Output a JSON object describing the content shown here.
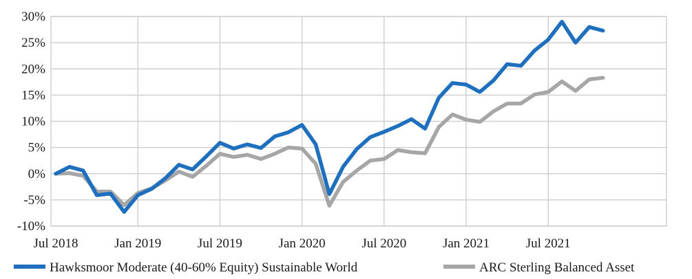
{
  "chart_data": {
    "type": "line",
    "title": "",
    "xlabel": "",
    "ylabel": "",
    "x_tick_labels": [
      "Jul 2018",
      "Jan 2019",
      "Jul 2019",
      "Jan 2020",
      "Jul 2020",
      "Jan 2021",
      "Jul 2021"
    ],
    "y_tick_labels": [
      "-10%",
      "-5%",
      "0%",
      "5%",
      "10%",
      "15%",
      "20%",
      "25%",
      "30%"
    ],
    "ylim": [
      -10,
      30
    ],
    "y_unit": "%",
    "grid": true,
    "legend_position": "bottom",
    "x": [
      "Jul 2018",
      "Aug 2018",
      "Sep 2018",
      "Oct 2018",
      "Nov 2018",
      "Dec 2018",
      "Jan 2019",
      "Feb 2019",
      "Mar 2019",
      "Apr 2019",
      "May 2019",
      "Jun 2019",
      "Jul 2019",
      "Aug 2019",
      "Sep 2019",
      "Oct 2019",
      "Nov 2019",
      "Dec 2019",
      "Jan 2020",
      "Feb 2020",
      "Mar 2020",
      "Apr 2020",
      "May 2020",
      "Jun 2020",
      "Jul 2020",
      "Aug 2020",
      "Sep 2020",
      "Oct 2020",
      "Nov 2020",
      "Dec 2020",
      "Jan 2021",
      "Feb 2021",
      "Mar 2021",
      "Apr 2021",
      "May 2021",
      "Jun 2021",
      "Jul 2021",
      "Aug 2021",
      "Sep 2021",
      "Oct 2021",
      "Nov 2021"
    ],
    "series": [
      {
        "name": "Hawksmoor Moderate (40-60% Equity) Sustainable World",
        "color": "#1f6fbf",
        "values": [
          0,
          1.3,
          0.6,
          -4.1,
          -3.8,
          -7.3,
          -4.1,
          -2.9,
          -0.9,
          1.7,
          0.8,
          3.3,
          5.9,
          4.8,
          5.6,
          4.9,
          7.1,
          7.9,
          9.3,
          5.6,
          -3.9,
          1.3,
          4.7,
          7.0,
          8.0,
          9.1,
          10.4,
          8.6,
          14.5,
          17.3,
          17.0,
          15.6,
          17.8,
          20.9,
          20.6,
          23.5,
          25.6,
          29.0,
          25.0,
          28.0,
          27.3
        ]
      },
      {
        "name": "ARC Sterling Balanced Asset",
        "color": "#a6a6a6",
        "values": [
          0,
          0.1,
          -0.4,
          -3.4,
          -3.4,
          -6.0,
          -3.7,
          -2.8,
          -1.3,
          0.4,
          -0.6,
          1.5,
          3.8,
          3.2,
          3.6,
          2.8,
          3.8,
          5.0,
          4.8,
          1.9,
          -6.1,
          -1.6,
          0.6,
          2.5,
          2.8,
          4.5,
          4.1,
          3.9,
          8.9,
          11.3,
          10.3,
          9.9,
          11.9,
          13.4,
          13.4,
          15.1,
          15.6,
          17.6,
          15.8,
          18.0,
          18.3
        ]
      }
    ]
  }
}
